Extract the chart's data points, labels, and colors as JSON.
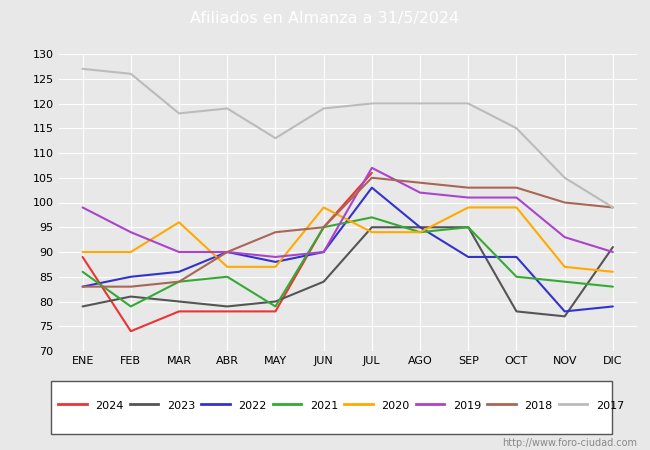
{
  "title": "Afiliados en Almanza a 31/5/2024",
  "title_bg": "#5577aa",
  "months": [
    "ENE",
    "FEB",
    "MAR",
    "ABR",
    "MAY",
    "JUN",
    "JUL",
    "AGO",
    "SEP",
    "OCT",
    "NOV",
    "DIC"
  ],
  "ylim": [
    70,
    130
  ],
  "yticks": [
    70,
    75,
    80,
    85,
    90,
    95,
    100,
    105,
    110,
    115,
    120,
    125,
    130
  ],
  "series": {
    "2024": {
      "color": "#ee3333",
      "values": [
        89,
        74,
        78,
        78,
        78,
        95,
        106,
        null,
        null,
        null,
        null,
        null
      ]
    },
    "2023": {
      "color": "#555555",
      "values": [
        79,
        81,
        80,
        79,
        80,
        84,
        95,
        95,
        95,
        78,
        77,
        91
      ]
    },
    "2022": {
      "color": "#3333cc",
      "values": [
        83,
        85,
        86,
        90,
        88,
        90,
        103,
        95,
        89,
        89,
        78,
        79
      ]
    },
    "2021": {
      "color": "#33aa33",
      "values": [
        86,
        79,
        84,
        85,
        79,
        95,
        97,
        94,
        95,
        85,
        84,
        83
      ]
    },
    "2020": {
      "color": "#ffaa00",
      "values": [
        90,
        90,
        96,
        87,
        87,
        99,
        94,
        94,
        99,
        99,
        87,
        86
      ]
    },
    "2019": {
      "color": "#aa44cc",
      "values": [
        99,
        94,
        90,
        90,
        89,
        90,
        107,
        102,
        101,
        101,
        93,
        90
      ]
    },
    "2018": {
      "color": "#aa6655",
      "values": [
        83,
        83,
        84,
        90,
        94,
        95,
        105,
        104,
        103,
        103,
        100,
        99
      ]
    },
    "2017": {
      "color": "#bbbbbb",
      "values": [
        127,
        126,
        118,
        119,
        113,
        119,
        120,
        120,
        120,
        115,
        105,
        99
      ]
    }
  },
  "legend_order": [
    "2024",
    "2023",
    "2022",
    "2021",
    "2020",
    "2019",
    "2018",
    "2017"
  ],
  "watermark": "http://www.foro-ciudad.com",
  "outer_bg": "#e8e8e8",
  "plot_bg": "#e8e8e8"
}
